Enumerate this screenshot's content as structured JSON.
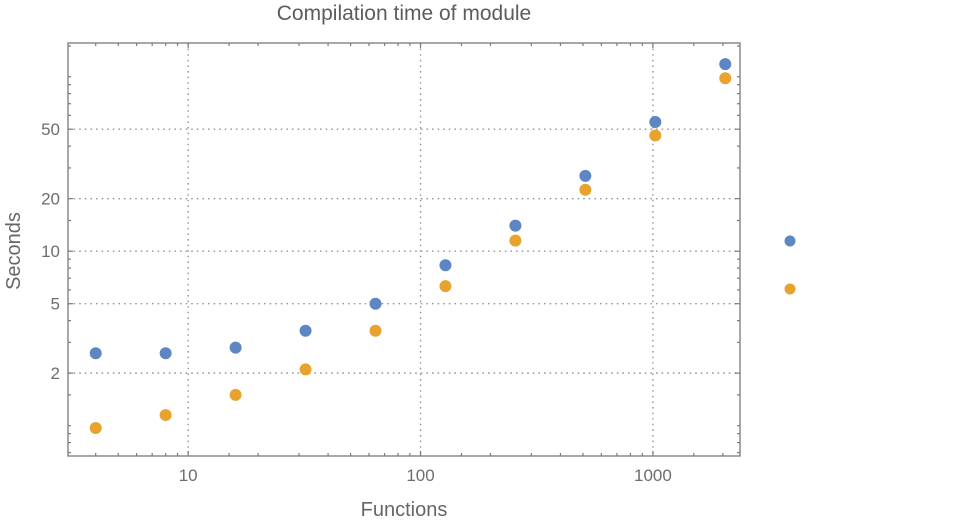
{
  "page": {
    "background": "#ffffff"
  },
  "chart_data": {
    "type": "scatter",
    "title": "Compilation time of module",
    "xlabel": "Functions",
    "ylabel": "Seconds",
    "xscale": "log",
    "yscale": "log",
    "xlim": [
      3.04,
      2370
    ],
    "ylim": [
      0.67,
      156
    ],
    "grid": true,
    "x": [
      4,
      8,
      16,
      32,
      64,
      128,
      256,
      512,
      1024,
      2048
    ],
    "series": [
      {
        "name": "series-1-blue",
        "color": "#5E86C2",
        "marker": "circle",
        "values": [
          2.6,
          2.6,
          2.8,
          3.5,
          5.0,
          8.3,
          14.0,
          27.0,
          55.0,
          118.0
        ]
      },
      {
        "name": "series-2-orange",
        "color": "#E8A22E",
        "marker": "circle",
        "values": [
          0.97,
          1.15,
          1.5,
          2.1,
          3.5,
          6.3,
          11.5,
          22.5,
          46.0,
          98.0
        ]
      }
    ],
    "x_ticks": {
      "major": [
        10,
        100,
        1000
      ],
      "major_labels": [
        "10",
        "100",
        "1000"
      ],
      "minor": [
        4,
        5,
        6,
        7,
        8,
        9,
        15,
        20,
        30,
        40,
        50,
        60,
        70,
        80,
        90,
        150,
        200,
        300,
        400,
        500,
        600,
        700,
        800,
        900,
        1500,
        2000
      ]
    },
    "y_ticks": {
      "major": [
        2,
        5,
        10,
        20,
        50
      ],
      "major_labels": [
        "2",
        "5",
        "10",
        "20",
        "50"
      ],
      "minor": [
        0.7,
        0.8,
        0.9,
        1,
        1.5,
        3,
        4,
        6,
        7,
        8,
        9,
        15,
        30,
        40,
        60,
        70,
        80,
        90,
        100,
        150
      ]
    },
    "gridlines": {
      "x": [
        10,
        100,
        1000
      ],
      "y": [
        2,
        5,
        10,
        20,
        50
      ],
      "style": "dotted"
    },
    "legend": {
      "position": "outside-right",
      "labels_visible": false,
      "markers": [
        {
          "series": "series-1-blue",
          "color": "#5E86C2"
        },
        {
          "series": "series-2-orange",
          "color": "#E8A22E"
        }
      ]
    },
    "styles": {
      "grid_color": "#979797",
      "frame_color": "#7a7a7a",
      "tick_color": "#7a7a7a",
      "tick_label_color": "#6d6d6d",
      "title_color": "#5c5c5c",
      "axis_label_color": "#666666",
      "marker_diameter": 12
    }
  }
}
